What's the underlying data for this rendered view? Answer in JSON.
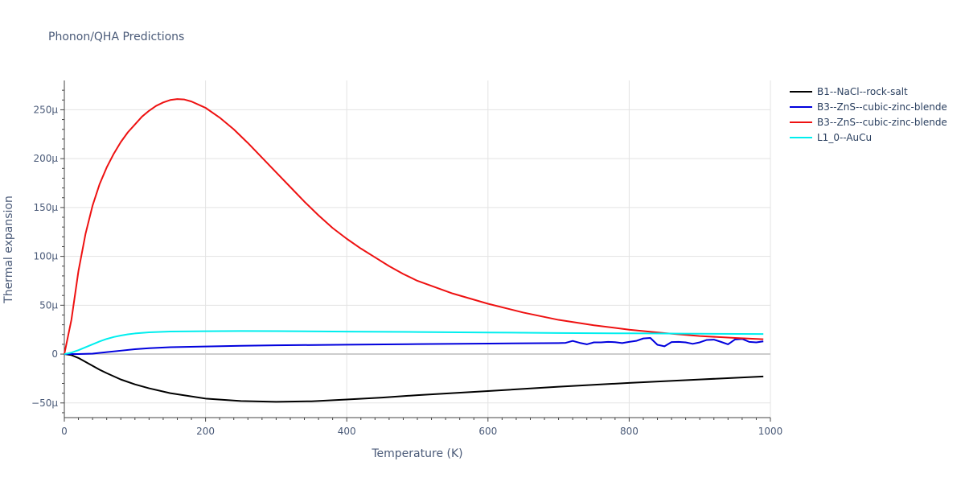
{
  "chart_data": {
    "type": "line",
    "title": "Phonon/QHA Predictions",
    "xlabel": "Temperature (K)",
    "ylabel": "Thermal expansion",
    "xlim": [
      0,
      1000
    ],
    "ylim": [
      -65,
      280
    ],
    "x_ticks": [
      0,
      200,
      400,
      600,
      800,
      1000
    ],
    "x_tick_labels": [
      "0",
      "200",
      "400",
      "600",
      "800",
      "1000"
    ],
    "y_ticks": [
      -50,
      0,
      50,
      100,
      150,
      200,
      250
    ],
    "y_tick_labels": [
      "−50µ",
      "0",
      "50µ",
      "100µ",
      "150µ",
      "200µ",
      "250µ"
    ],
    "grid": true,
    "legend_position": "top-right",
    "series": [
      {
        "name": "B1--NaCl--rock-salt",
        "color": "#000000",
        "x": [
          0,
          10,
          20,
          30,
          40,
          50,
          60,
          80,
          100,
          120,
          150,
          200,
          250,
          300,
          350,
          400,
          450,
          500,
          600,
          700,
          800,
          900,
          990
        ],
        "y": [
          0,
          -1,
          -4,
          -8,
          -12,
          -16,
          -19.5,
          -26,
          -31,
          -35,
          -40,
          -45.5,
          -48,
          -48.8,
          -48.3,
          -46.5,
          -44.5,
          -42,
          -37.8,
          -33.4,
          -29.5,
          -26,
          -22.9
        ]
      },
      {
        "name": "B3--ZnS--cubic-zinc-blende",
        "color": "#0000dd",
        "x": [
          0,
          20,
          40,
          60,
          80,
          100,
          120,
          150,
          200,
          250,
          300,
          400,
          500,
          600,
          700,
          710,
          720,
          730,
          740,
          750,
          760,
          770,
          780,
          790,
          800,
          810,
          820,
          830,
          840,
          850,
          860,
          870,
          880,
          890,
          900,
          910,
          920,
          930,
          940,
          950,
          960,
          970,
          980,
          990
        ],
        "y": [
          0,
          0,
          0.5,
          2,
          3.5,
          5,
          6,
          7,
          7.8,
          8.5,
          9,
          9.6,
          10.2,
          10.8,
          11.3,
          11.5,
          13.5,
          11.5,
          10,
          12,
          12,
          12.5,
          12.2,
          11.3,
          12.5,
          13.5,
          16,
          16.5,
          9.5,
          8,
          12.3,
          12.5,
          12,
          10.5,
          12,
          14.5,
          14.8,
          12.5,
          10,
          15,
          15.5,
          12.5,
          12,
          13
        ]
      },
      {
        "name": "B3--ZnS--cubic-zinc-blende",
        "color": "#ee1111",
        "x": [
          0,
          10,
          20,
          30,
          40,
          50,
          60,
          70,
          80,
          90,
          100,
          110,
          120,
          130,
          140,
          150,
          160,
          170,
          180,
          200,
          220,
          240,
          260,
          280,
          300,
          320,
          340,
          360,
          380,
          400,
          420,
          440,
          460,
          480,
          500,
          550,
          600,
          650,
          700,
          750,
          800,
          850,
          900,
          950,
          990
        ],
        "y": [
          0,
          35,
          85,
          123,
          152,
          174,
          191,
          205,
          217,
          227,
          235,
          243,
          249,
          254,
          257.5,
          260,
          261,
          260.5,
          258.5,
          252,
          242,
          230,
          216,
          201,
          186,
          171,
          156,
          142,
          129,
          118,
          108,
          99,
          90,
          82,
          75,
          62,
          51.5,
          42.5,
          35,
          29.5,
          25,
          21.5,
          18.5,
          16.5,
          15.2
        ]
      },
      {
        "name": "L1_0--AuCu",
        "color": "#00eeee",
        "x": [
          0,
          10,
          20,
          30,
          40,
          50,
          60,
          70,
          80,
          90,
          100,
          120,
          150,
          200,
          250,
          300,
          400,
          500,
          600,
          700,
          800,
          900,
          990
        ],
        "y": [
          0,
          1.5,
          4,
          7,
          10,
          13,
          15.5,
          17.5,
          19,
          20.2,
          21.1,
          22.3,
          23.1,
          23.4,
          23.6,
          23.5,
          23,
          22.6,
          22.1,
          21.6,
          21.2,
          20.8,
          20.5
        ]
      }
    ]
  }
}
